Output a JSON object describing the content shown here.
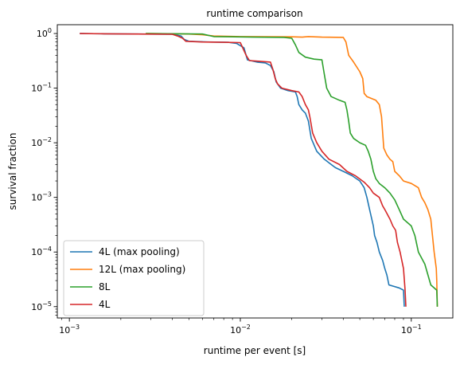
{
  "chart_data": {
    "type": "line",
    "title": "runtime comparison",
    "xlabel": "runtime per event [s]",
    "ylabel": "survival fraction",
    "xscale": "log",
    "yscale": "log",
    "xlim": [
      0.00085,
      0.175
    ],
    "ylim": [
      6.2e-06,
      1.45
    ],
    "grid": false,
    "legend_position": "lower-left",
    "x_ticks": [
      {
        "value": 0.001,
        "base": "10",
        "exp": "−3"
      },
      {
        "value": 0.01,
        "base": "10",
        "exp": "−2"
      },
      {
        "value": 0.1,
        "base": "10",
        "exp": "−1"
      }
    ],
    "y_ticks": [
      {
        "value": 1e-05,
        "base": "10",
        "exp": "−5"
      },
      {
        "value": 0.0001,
        "base": "10",
        "exp": "−4"
      },
      {
        "value": 0.001,
        "base": "10",
        "exp": "−3"
      },
      {
        "value": 0.01,
        "base": "10",
        "exp": "−2"
      },
      {
        "value": 0.1,
        "base": "10",
        "exp": "−1"
      },
      {
        "value": 1,
        "base": "10",
        "exp": "0"
      }
    ],
    "series": [
      {
        "name": "4L (max pooling)",
        "color": "#1f77b4",
        "points": [
          [
            0.00115,
            1.0
          ],
          [
            0.0016,
            0.99
          ],
          [
            0.0025,
            0.98
          ],
          [
            0.004,
            0.97
          ],
          [
            0.0045,
            0.9
          ],
          [
            0.0047,
            0.78
          ],
          [
            0.005,
            0.72
          ],
          [
            0.0065,
            0.7
          ],
          [
            0.0085,
            0.69
          ],
          [
            0.0095,
            0.66
          ],
          [
            0.0105,
            0.55
          ],
          [
            0.011,
            0.33
          ],
          [
            0.0125,
            0.3
          ],
          [
            0.014,
            0.29
          ],
          [
            0.015,
            0.26
          ],
          [
            0.0157,
            0.2
          ],
          [
            0.0162,
            0.13
          ],
          [
            0.0172,
            0.1
          ],
          [
            0.019,
            0.09
          ],
          [
            0.021,
            0.085
          ],
          [
            0.0215,
            0.07
          ],
          [
            0.022,
            0.05
          ],
          [
            0.023,
            0.04
          ],
          [
            0.024,
            0.035
          ],
          [
            0.025,
            0.025
          ],
          [
            0.026,
            0.012
          ],
          [
            0.028,
            0.007
          ],
          [
            0.031,
            0.005
          ],
          [
            0.034,
            0.004
          ],
          [
            0.036,
            0.0035
          ],
          [
            0.04,
            0.003
          ],
          [
            0.045,
            0.0025
          ],
          [
            0.05,
            0.002
          ],
          [
            0.053,
            0.0015
          ],
          [
            0.055,
            0.001
          ],
          [
            0.057,
            0.0006
          ],
          [
            0.06,
            0.0003
          ],
          [
            0.061,
            0.0002
          ],
          [
            0.063,
            0.00015
          ],
          [
            0.065,
            0.0001
          ],
          [
            0.068,
            7e-05
          ],
          [
            0.07,
            5e-05
          ],
          [
            0.072,
            3.8e-05
          ],
          [
            0.074,
            2.5e-05
          ],
          [
            0.085,
            2.2e-05
          ],
          [
            0.09,
            2e-05
          ],
          [
            0.091,
            1e-05
          ]
        ]
      },
      {
        "name": "12L (max pooling)",
        "color": "#ff7f0e",
        "points": [
          [
            0.0028,
            1.0
          ],
          [
            0.005,
            0.98
          ],
          [
            0.006,
            0.95
          ],
          [
            0.007,
            0.9
          ],
          [
            0.01,
            0.88
          ],
          [
            0.02,
            0.87
          ],
          [
            0.023,
            0.86
          ],
          [
            0.025,
            0.88
          ],
          [
            0.03,
            0.86
          ],
          [
            0.04,
            0.85
          ],
          [
            0.0415,
            0.7
          ],
          [
            0.043,
            0.4
          ],
          [
            0.046,
            0.3
          ],
          [
            0.05,
            0.2
          ],
          [
            0.052,
            0.15
          ],
          [
            0.053,
            0.08
          ],
          [
            0.055,
            0.07
          ],
          [
            0.062,
            0.06
          ],
          [
            0.065,
            0.05
          ],
          [
            0.067,
            0.03
          ],
          [
            0.069,
            0.008
          ],
          [
            0.072,
            0.006
          ],
          [
            0.075,
            0.005
          ],
          [
            0.078,
            0.0045
          ],
          [
            0.08,
            0.003
          ],
          [
            0.085,
            0.0025
          ],
          [
            0.09,
            0.002
          ],
          [
            0.1,
            0.0018
          ],
          [
            0.11,
            0.0015
          ],
          [
            0.115,
            0.001
          ],
          [
            0.12,
            0.0008
          ],
          [
            0.125,
            0.0006
          ],
          [
            0.13,
            0.0004
          ],
          [
            0.133,
            0.0002
          ],
          [
            0.136,
            0.0001
          ],
          [
            0.14,
            5e-05
          ],
          [
            0.141,
            3e-05
          ],
          [
            0.142,
            1e-05
          ]
        ]
      },
      {
        "name": "8L",
        "color": "#2ca02c",
        "points": [
          [
            0.0028,
            1.0
          ],
          [
            0.006,
            0.98
          ],
          [
            0.007,
            0.88
          ],
          [
            0.009,
            0.87
          ],
          [
            0.012,
            0.86
          ],
          [
            0.018,
            0.85
          ],
          [
            0.02,
            0.82
          ],
          [
            0.021,
            0.62
          ],
          [
            0.022,
            0.45
          ],
          [
            0.024,
            0.37
          ],
          [
            0.027,
            0.34
          ],
          [
            0.03,
            0.33
          ],
          [
            0.031,
            0.18
          ],
          [
            0.032,
            0.1
          ],
          [
            0.034,
            0.07
          ],
          [
            0.038,
            0.06
          ],
          [
            0.041,
            0.055
          ],
          [
            0.042,
            0.04
          ],
          [
            0.043,
            0.025
          ],
          [
            0.044,
            0.015
          ],
          [
            0.046,
            0.012
          ],
          [
            0.05,
            0.01
          ],
          [
            0.054,
            0.009
          ],
          [
            0.056,
            0.007
          ],
          [
            0.058,
            0.005
          ],
          [
            0.06,
            0.003
          ],
          [
            0.062,
            0.0022
          ],
          [
            0.065,
            0.0018
          ],
          [
            0.07,
            0.0015
          ],
          [
            0.075,
            0.0012
          ],
          [
            0.08,
            0.0009
          ],
          [
            0.085,
            0.0006
          ],
          [
            0.09,
            0.0004
          ],
          [
            0.1,
            0.0003
          ],
          [
            0.105,
            0.0002
          ],
          [
            0.11,
            0.0001
          ],
          [
            0.12,
            6e-05
          ],
          [
            0.13,
            2.5e-05
          ],
          [
            0.141,
            2e-05
          ],
          [
            0.142,
            1e-05
          ]
        ]
      },
      {
        "name": "4L",
        "color": "#d62728",
        "points": [
          [
            0.00115,
            1.0
          ],
          [
            0.0016,
            0.99
          ],
          [
            0.0025,
            0.98
          ],
          [
            0.004,
            0.97
          ],
          [
            0.0043,
            0.9
          ],
          [
            0.0046,
            0.82
          ],
          [
            0.0048,
            0.72
          ],
          [
            0.006,
            0.7
          ],
          [
            0.008,
            0.69
          ],
          [
            0.01,
            0.68
          ],
          [
            0.0108,
            0.4
          ],
          [
            0.0113,
            0.32
          ],
          [
            0.013,
            0.31
          ],
          [
            0.015,
            0.3
          ],
          [
            0.0155,
            0.22
          ],
          [
            0.016,
            0.15
          ],
          [
            0.0165,
            0.12
          ],
          [
            0.0175,
            0.1
          ],
          [
            0.02,
            0.09
          ],
          [
            0.022,
            0.085
          ],
          [
            0.023,
            0.07
          ],
          [
            0.024,
            0.05
          ],
          [
            0.025,
            0.04
          ],
          [
            0.0255,
            0.03
          ],
          [
            0.0265,
            0.015
          ],
          [
            0.028,
            0.01
          ],
          [
            0.03,
            0.007
          ],
          [
            0.033,
            0.005
          ],
          [
            0.038,
            0.004
          ],
          [
            0.042,
            0.003
          ],
          [
            0.047,
            0.0025
          ],
          [
            0.053,
            0.0019
          ],
          [
            0.057,
            0.0015
          ],
          [
            0.06,
            0.0012
          ],
          [
            0.065,
            0.001
          ],
          [
            0.068,
            0.0007
          ],
          [
            0.07,
            0.0006
          ],
          [
            0.075,
            0.0004
          ],
          [
            0.078,
            0.0003
          ],
          [
            0.081,
            0.00025
          ],
          [
            0.083,
            0.00015
          ],
          [
            0.086,
            0.0001
          ],
          [
            0.088,
            7e-05
          ],
          [
            0.09,
            5e-05
          ],
          [
            0.092,
            2e-05
          ],
          [
            0.093,
            1e-05
          ]
        ]
      }
    ]
  }
}
